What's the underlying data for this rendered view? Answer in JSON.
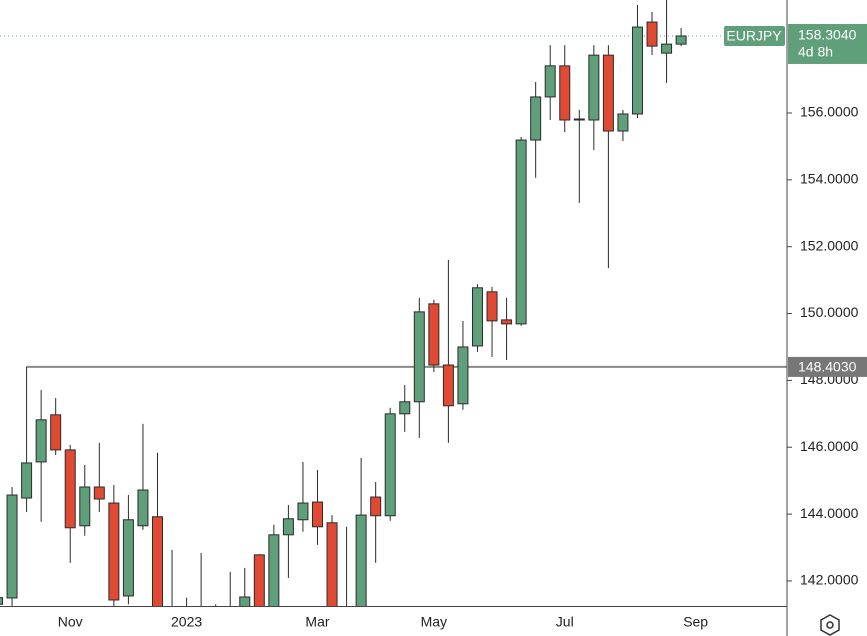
{
  "chart_data": {
    "type": "candlestick",
    "categories": [
      null,
      null,
      null,
      null,
      null,
      "Nov",
      null,
      null,
      null,
      null,
      null,
      null,
      null,
      "2023",
      null,
      null,
      null,
      null,
      null,
      null,
      null,
      null,
      "Mar",
      null,
      null,
      null,
      null,
      null,
      null,
      null,
      "May",
      null,
      null,
      null,
      null,
      null,
      null,
      null,
      null,
      "Jul",
      null,
      null,
      null,
      null,
      null,
      null,
      null,
      null,
      "Sep"
    ],
    "open": [
      141.3,
      141.49,
      144.48,
      145.56,
      146.97,
      145.92,
      143.65,
      144.81,
      144.33,
      141.55,
      143.65,
      143.92,
      140.8,
      140.9,
      141.0,
      140.9,
      140.8,
      141.0,
      142.78,
      141.2,
      143.38,
      143.83,
      144.36,
      143.74,
      140.5,
      141.0,
      144.51,
      143.95,
      147.0,
      147.36,
      150.29,
      148.46,
      147.3,
      149.03,
      150.65,
      149.81,
      149.69,
      155.19,
      156.48,
      157.41,
      155.79,
      155.79,
      157.73,
      155.46,
      155.97,
      158.72,
      157.79,
      158.06,
      null
    ],
    "high": [
      141.6,
      144.81,
      148.403,
      147.71,
      147.47,
      146.07,
      145.47,
      146.13,
      144.87,
      144.57,
      146.7,
      145.83,
      142.93,
      141.5,
      142.84,
      141.3,
      142.27,
      142.39,
      142.8,
      143.68,
      144.27,
      145.56,
      145.32,
      143.97,
      143.62,
      145.68,
      144.96,
      147.18,
      147.86,
      150.47,
      150.41,
      151.6,
      149.78,
      150.88,
      150.8,
      150.47,
      155.28,
      156.93,
      158.03,
      158.03,
      156.09,
      158.03,
      158.03,
      156.09,
      159.23,
      159.02,
      159.4,
      158.54,
      null
    ],
    "low": [
      141.2,
      141.2,
      144.06,
      143.77,
      145.77,
      142.54,
      143.35,
      144.06,
      141.25,
      141.3,
      143.53,
      141.0,
      140.2,
      140.5,
      140.6,
      140.5,
      140.4,
      140.8,
      140.9,
      141.0,
      142.09,
      143.47,
      143.08,
      140.7,
      140.3,
      140.8,
      142.54,
      143.8,
      146.46,
      146.28,
      148.25,
      146.13,
      147.12,
      148.85,
      148.7,
      148.61,
      149.63,
      154.06,
      155.79,
      155.43,
      153.31,
      154.89,
      151.36,
      155.16,
      155.85,
      157.73,
      156.9,
      158.0,
      null
    ],
    "close": [
      141.5,
      144.57,
      145.53,
      146.82,
      145.92,
      143.59,
      144.81,
      144.45,
      141.43,
      143.83,
      144.72,
      141.1,
      140.5,
      141.2,
      140.8,
      141.1,
      140.6,
      141.52,
      141.0,
      143.38,
      143.86,
      144.33,
      143.62,
      141.0,
      141.0,
      143.97,
      143.95,
      147.0,
      147.36,
      150.05,
      148.46,
      147.24,
      149.0,
      150.77,
      149.78,
      149.69,
      155.19,
      156.48,
      157.41,
      155.79,
      155.82,
      157.73,
      155.46,
      155.97,
      158.57,
      158.0,
      158.06,
      158.304,
      null
    ],
    "up_color": "#5f9f7a",
    "down_color": "#e04a33",
    "ylim": [
      141.25,
      159.38
    ],
    "yticks": [
      {
        "value": 142,
        "label": "142.0000"
      },
      {
        "value": 144,
        "label": "144.0000"
      },
      {
        "value": 146,
        "label": "146.0000"
      },
      {
        "value": 148,
        "label": "148.0000"
      },
      {
        "value": 150,
        "label": "150.0000"
      },
      {
        "value": 152,
        "label": "152.0000"
      },
      {
        "value": 154,
        "label": "154.0000"
      },
      {
        "value": 156,
        "label": "156.0000"
      }
    ],
    "symbol": "EURJPY",
    "last_price": {
      "value": 158.304,
      "label": "158.3040"
    },
    "countdown": "4d 8h",
    "hline": {
      "value": 148.403,
      "label": "148.4030"
    }
  }
}
